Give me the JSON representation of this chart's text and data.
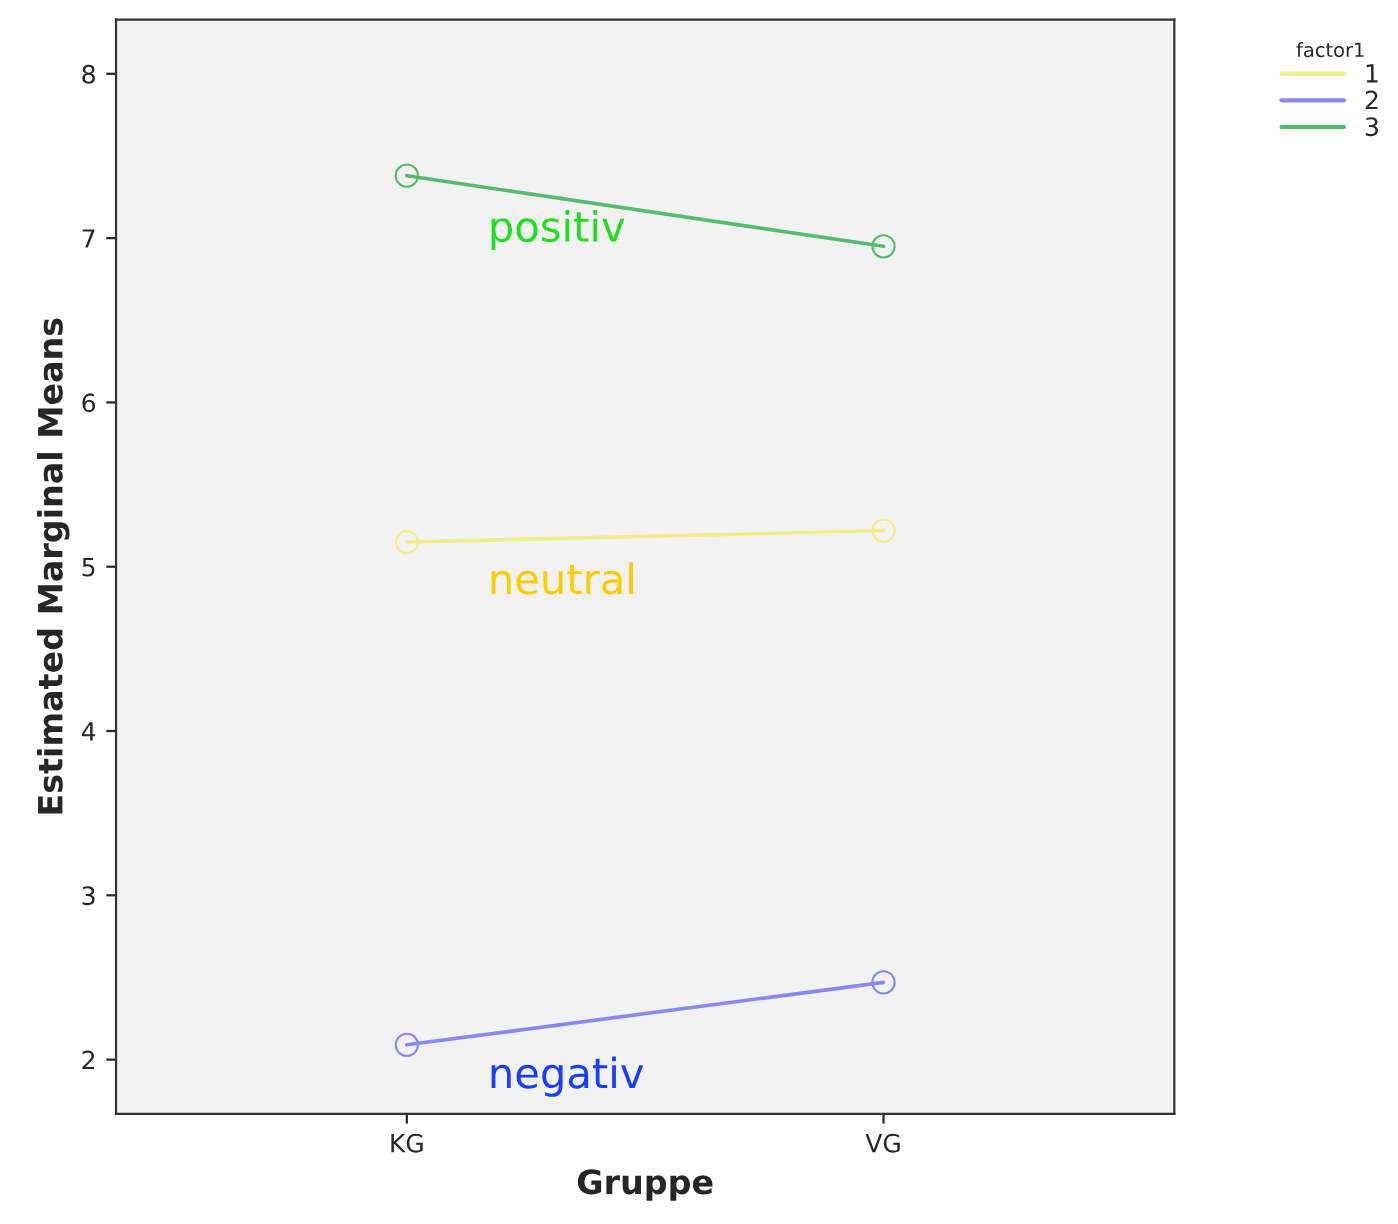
{
  "chart_data": {
    "type": "line",
    "xlabel": "Gruppe",
    "ylabel": "Estimated Marginal Means",
    "legend_title": "factor1",
    "categories": [
      "KG",
      "VG"
    ],
    "series": [
      {
        "name": "1",
        "color": "#eeee88",
        "values": [
          5.15,
          5.22
        ]
      },
      {
        "name": "2",
        "color": "#8888f0",
        "values": [
          2.09,
          2.47
        ]
      },
      {
        "name": "3",
        "color": "#55bb70",
        "values": [
          7.38,
          6.95
        ]
      }
    ],
    "ylim": [
      1.67,
      8.33
    ],
    "yticks": [
      2,
      3,
      4,
      5,
      6,
      7,
      8
    ],
    "annotations": [
      "positiv",
      "neutral",
      "negativ"
    ],
    "marker": "circle",
    "line_style": "solid",
    "grid": false,
    "legend": "top right"
  }
}
